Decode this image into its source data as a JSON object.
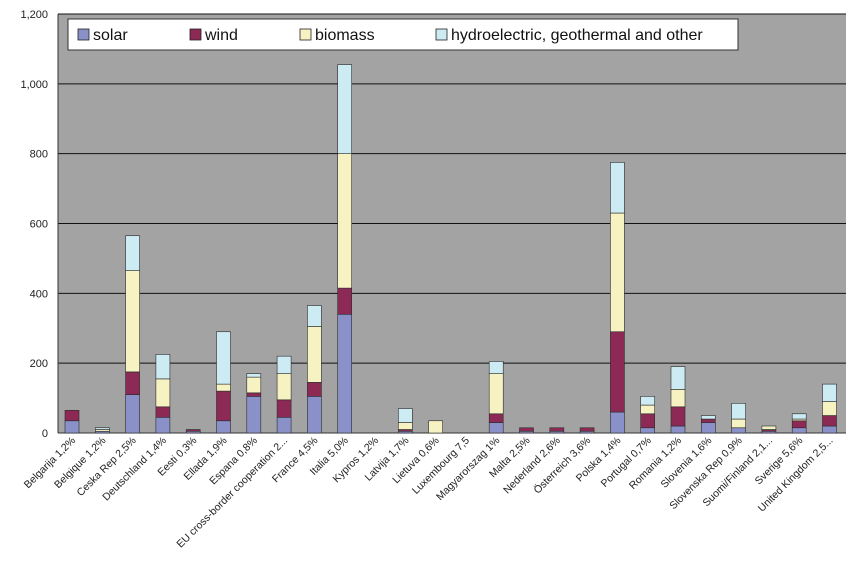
{
  "chart_data": {
    "type": "bar",
    "stacked": true,
    "ylim": [
      0,
      1200
    ],
    "yticks": [
      "0",
      "200",
      "400",
      "600",
      "800",
      "1,000",
      "1,200"
    ],
    "grid": true,
    "legend_position": "top",
    "colors": {
      "plot_bg": "#a3a3a3",
      "gridline": "#111111",
      "solar": "#8a91c9",
      "wind": "#8c2a55",
      "biomass": "#f7f2c2",
      "hydro": "#ccebf2"
    },
    "categories": [
      "Belgarija 1,2%",
      "Belgique 1,2%",
      "Ceska Rep 2,5%",
      "Deutschland 1,4%",
      "Eesti 0,3%",
      "Ellada 1,9%",
      "Espana 0,8%",
      "EU cross-border cooperation 2...",
      "France 4,5%",
      "Italia 5,0%",
      "Kypros 1,2%",
      "Latvija 1,7%",
      "Lietuva 0,6%",
      "Luxembourg 7,5",
      "Magyarorszag 1%",
      "Malta 2,5%",
      "Nederland 2,6%",
      "Österreich 3,6%",
      "Polska 1,4%",
      "Portugal 0,7%",
      "Romania 1,2%",
      "Slovenia 1,6%",
      "Slovenska Rep 0,9%",
      "Suomi/Finland 2,1...",
      "Sverige 5,6%",
      "United Kingdom 2,5..."
    ],
    "series": [
      {
        "name": "solar",
        "key": "solar",
        "values": [
          35,
          5,
          110,
          45,
          5,
          35,
          105,
          45,
          105,
          340,
          0,
          5,
          0,
          0,
          30,
          5,
          5,
          5,
          60,
          15,
          20,
          30,
          15,
          5,
          15,
          20
        ]
      },
      {
        "name": "wind",
        "key": "wind",
        "values": [
          30,
          0,
          65,
          30,
          5,
          85,
          10,
          50,
          40,
          75,
          0,
          5,
          0,
          0,
          25,
          10,
          10,
          10,
          230,
          40,
          55,
          10,
          0,
          5,
          20,
          30
        ]
      },
      {
        "name": "biomass",
        "key": "biomass",
        "values": [
          0,
          5,
          290,
          80,
          0,
          20,
          45,
          75,
          160,
          385,
          0,
          20,
          35,
          0,
          115,
          0,
          0,
          0,
          340,
          25,
          50,
          0,
          25,
          10,
          5,
          40
        ]
      },
      {
        "name": "hydroelectric, geothermal and other",
        "key": "hydro",
        "values": [
          0,
          5,
          100,
          70,
          0,
          150,
          10,
          50,
          60,
          255,
          0,
          40,
          0,
          0,
          35,
          0,
          0,
          0,
          145,
          25,
          65,
          10,
          45,
          0,
          15,
          50
        ]
      }
    ]
  }
}
